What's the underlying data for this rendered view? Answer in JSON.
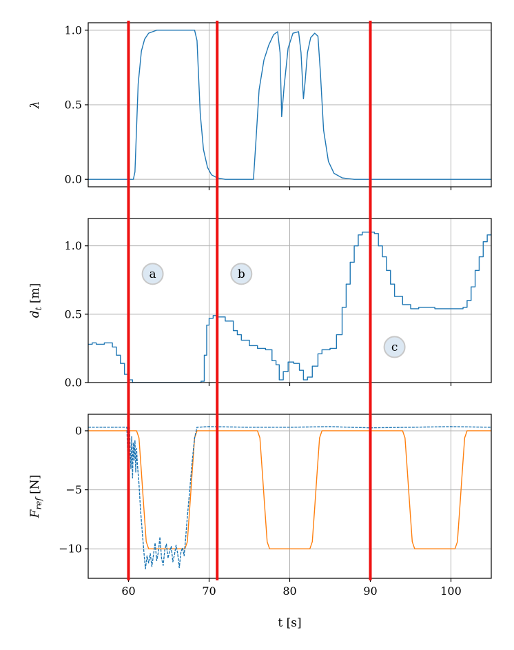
{
  "chart_data": [
    {
      "type": "line",
      "title": "",
      "xlabel": "",
      "ylabel": "λ",
      "xlim": [
        55,
        105
      ],
      "ylim": [
        -0.05,
        1.05
      ],
      "yticks": [
        0.0,
        0.5,
        1.0
      ],
      "ytick_labels": [
        "0.0",
        "0.5",
        "1.0"
      ],
      "xticks": [
        60,
        70,
        80,
        90,
        100
      ],
      "show_xtick_labels": false,
      "grid": true,
      "series": [
        {
          "color": "#1f77b4",
          "step": false,
          "dashed": false,
          "x": [
            55,
            60.6,
            60.8,
            61.2,
            61.6,
            62,
            62.5,
            63.5,
            64.5,
            66,
            68.2,
            68.5,
            68.9,
            69.3,
            69.8,
            70.3,
            71,
            72,
            75.5,
            75.8,
            76.2,
            76.8,
            77.4,
            78,
            78.5,
            78.8,
            79,
            79.3,
            79.8,
            80.4,
            81.1,
            81.4,
            81.7,
            81.9,
            82.2,
            82.6,
            83.1,
            83.5,
            83.8,
            84.2,
            84.8,
            85.5,
            86.5,
            88,
            105
          ],
          "y": [
            0,
            0,
            0.05,
            0.64,
            0.86,
            0.94,
            0.98,
            1.0,
            1.0,
            1.0,
            1.0,
            0.93,
            0.44,
            0.2,
            0.08,
            0.03,
            0.01,
            0,
            0,
            0.25,
            0.6,
            0.8,
            0.9,
            0.97,
            0.99,
            0.85,
            0.42,
            0.62,
            0.88,
            0.98,
            0.99,
            0.85,
            0.54,
            0.65,
            0.85,
            0.95,
            0.98,
            0.96,
            0.72,
            0.33,
            0.12,
            0.04,
            0.01,
            0,
            0
          ]
        }
      ],
      "vlines": [
        60,
        71,
        90
      ],
      "vline_color": "#ee1111"
    },
    {
      "type": "line",
      "title": "",
      "xlabel": "",
      "ylabel": "d_t [m]",
      "ylabel_main": "d",
      "ylabel_sub": "t",
      "ylabel_unit": " [m]",
      "xlim": [
        55,
        105
      ],
      "ylim": [
        0,
        1.2
      ],
      "yticks": [
        0.0,
        0.5,
        1.0
      ],
      "ytick_labels": [
        "0.0",
        "0.5",
        "1.0"
      ],
      "xticks": [
        60,
        70,
        80,
        90,
        100
      ],
      "show_xtick_labels": false,
      "grid": true,
      "series": [
        {
          "color": "#1f77b4",
          "step": true,
          "dashed": false,
          "x": [
            55,
            55.5,
            56,
            57,
            58,
            58.5,
            59,
            59.5,
            60,
            60.5,
            61,
            62,
            64,
            66,
            68,
            69,
            69.4,
            69.7,
            70,
            70.5,
            71,
            72,
            73,
            73.5,
            74,
            75,
            76,
            77,
            77.8,
            78.3,
            78.7,
            79.2,
            79.8,
            80.5,
            81.2,
            81.7,
            82.2,
            82.8,
            83.5,
            84,
            85,
            85.8,
            86.5,
            87,
            87.5,
            88,
            88.5,
            89,
            90,
            90.5,
            91,
            91.5,
            92,
            92.5,
            93,
            94,
            95,
            96,
            98,
            100,
            101,
            101.5,
            102,
            102.5,
            103,
            103.5,
            104,
            104.5,
            105
          ],
          "y": [
            0.28,
            0.29,
            0.28,
            0.29,
            0.26,
            0.2,
            0.14,
            0.06,
            0.02,
            0.0,
            0.0,
            0.0,
            0.0,
            0.0,
            0.0,
            0.01,
            0.2,
            0.42,
            0.47,
            0.49,
            0.48,
            0.45,
            0.38,
            0.35,
            0.31,
            0.27,
            0.25,
            0.24,
            0.16,
            0.13,
            0.02,
            0.08,
            0.15,
            0.14,
            0.09,
            0.02,
            0.04,
            0.12,
            0.21,
            0.24,
            0.25,
            0.35,
            0.55,
            0.72,
            0.88,
            1.0,
            1.08,
            1.1,
            1.1,
            1.09,
            1.0,
            0.92,
            0.82,
            0.72,
            0.63,
            0.57,
            0.54,
            0.55,
            0.54,
            0.54,
            0.54,
            0.55,
            0.6,
            0.7,
            0.82,
            0.92,
            1.03,
            1.08,
            1.09
          ]
        }
      ],
      "vlines": [
        60,
        71,
        90
      ],
      "vline_color": "#ee1111",
      "annotations": [
        {
          "text": "a",
          "x": 63,
          "y": 0.795
        },
        {
          "text": "b",
          "x": 74,
          "y": 0.795
        },
        {
          "text": "c",
          "x": 93,
          "y": 0.26
        }
      ]
    },
    {
      "type": "line",
      "title": "",
      "xlabel": "t [s]",
      "ylabel": "F_ref [N]",
      "ylabel_main": "F",
      "ylabel_sub": "ref",
      "ylabel_unit": " [N]",
      "xlim": [
        55,
        105
      ],
      "ylim": [
        -12.5,
        1.4
      ],
      "yticks": [
        0,
        -5,
        -10
      ],
      "ytick_labels": [
        "0",
        "−5",
        "−10"
      ],
      "xticks": [
        60,
        70,
        80,
        90,
        100
      ],
      "xtick_labels": [
        "60",
        "70",
        "80",
        "90",
        "100"
      ],
      "show_xtick_labels": true,
      "grid": true,
      "series": [
        {
          "color": "#ff7f0e",
          "step": false,
          "dashed": false,
          "x": [
            55,
            61,
            61.3,
            61.6,
            61.9,
            62.2,
            62.5,
            67,
            67.3,
            67.6,
            67.9,
            68.2,
            68.5,
            76,
            76.3,
            76.6,
            76.9,
            77.2,
            77.5,
            82.5,
            82.8,
            83.1,
            83.4,
            83.7,
            84,
            94,
            94.3,
            94.6,
            94.9,
            95.2,
            95.5,
            100.5,
            100.8,
            101.1,
            101.4,
            101.7,
            102,
            105
          ],
          "y": [
            0,
            0,
            -0.6,
            -3.5,
            -6.5,
            -9.4,
            -10,
            -10,
            -9.4,
            -6.5,
            -3.5,
            -0.6,
            0,
            0,
            -0.6,
            -3.5,
            -6.5,
            -9.4,
            -10,
            -10,
            -9.4,
            -6.5,
            -3.5,
            -0.6,
            0,
            0,
            -0.6,
            -3.5,
            -6.5,
            -9.4,
            -10,
            -10,
            -9.4,
            -6.5,
            -3.5,
            -0.6,
            0,
            0
          ]
        },
        {
          "color": "#1f77b4",
          "step": false,
          "dashed": true,
          "x": [
            55,
            59.8,
            60,
            60.1,
            60.2,
            60.3,
            60.4,
            60.5,
            60.6,
            60.7,
            60.8,
            60.9,
            61,
            61.1,
            61.3,
            61.5,
            61.7,
            61.9,
            62.1,
            62.3,
            62.5,
            62.7,
            62.9,
            63.1,
            63.3,
            63.5,
            63.7,
            63.9,
            64.1,
            64.3,
            64.5,
            64.7,
            64.9,
            65.1,
            65.3,
            65.5,
            65.7,
            65.9,
            66.1,
            66.3,
            66.5,
            66.7,
            66.9,
            67.1,
            67.3,
            67.6,
            67.9,
            68.2,
            68.5,
            70,
            75,
            80,
            85,
            90,
            95,
            100,
            105
          ],
          "y": [
            0.3,
            0.3,
            -4.5,
            0.8,
            -1.5,
            -3.2,
            -0.5,
            -4.0,
            -1.0,
            -2.5,
            -0.8,
            -3.5,
            -1.5,
            -2.8,
            -4.5,
            -6.8,
            -8.5,
            -10.2,
            -11.7,
            -10.6,
            -11.2,
            -10.4,
            -11.5,
            -10.5,
            -9.5,
            -11.0,
            -10.3,
            -9.0,
            -10.8,
            -11.4,
            -10.1,
            -9.6,
            -10.8,
            -10.2,
            -9.8,
            -11.1,
            -10.5,
            -9.7,
            -10.4,
            -11.6,
            -10.3,
            -9.9,
            -10.6,
            -9.0,
            -7.3,
            -5.0,
            -2.6,
            -0.6,
            0.3,
            0.35,
            0.3,
            0.3,
            0.35,
            0.25,
            0.3,
            0.35,
            0.3
          ]
        }
      ],
      "vlines": [
        60,
        71,
        90
      ],
      "vline_color": "#ee1111"
    }
  ]
}
